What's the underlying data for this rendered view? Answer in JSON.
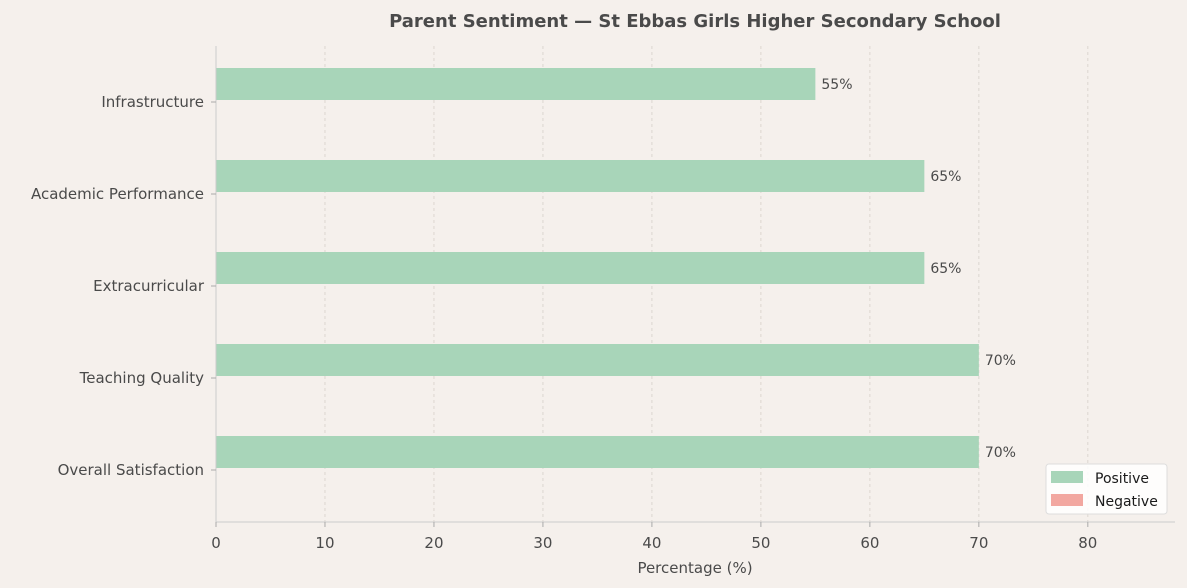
{
  "chart_data": {
    "type": "bar",
    "orientation": "horizontal",
    "title": "Parent Sentiment — St Ebbas Girls Higher Secondary School",
    "xlabel": "Percentage (%)",
    "ylabel": "",
    "categories": [
      "Infrastructure",
      "Academic Performance",
      "Extracurricular",
      "Teaching Quality",
      "Overall Satisfaction"
    ],
    "series": [
      {
        "name": "Positive",
        "values": [
          55,
          65,
          65,
          70,
          70
        ],
        "color": "#a8d5b9"
      },
      {
        "name": "Negative",
        "values": [
          0,
          0,
          0,
          0,
          0
        ],
        "color": "#f2a7a0"
      }
    ],
    "value_labels": [
      "55%",
      "65%",
      "65%",
      "70%",
      "70%"
    ],
    "xlim": [
      0,
      88
    ],
    "xticks": [
      0,
      10,
      20,
      30,
      40,
      50,
      60,
      70,
      80
    ],
    "grid": "vertical-dashed",
    "legend_position": "bottom-right"
  }
}
